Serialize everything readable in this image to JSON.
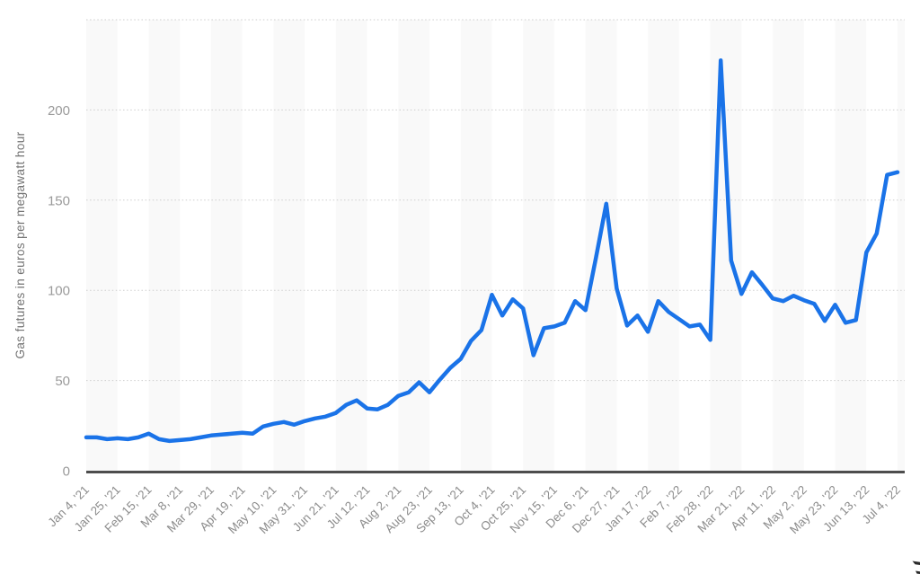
{
  "chart_data": {
    "type": "line",
    "title": "",
    "ylabel": "Gas futures in euros per megawatt hour",
    "xlabel": "",
    "legend": "none",
    "grid": "horizontal-dotted",
    "ylim": [
      0,
      250
    ],
    "yticks": [
      0,
      50,
      100,
      150,
      200
    ],
    "x_tick_labels": [
      "Jan 4, '21",
      "Jan 25, '21",
      "Feb 15, '21",
      "Mar 8, '21",
      "Mar 29, '21",
      "Apr 19, '21",
      "May 10, '21",
      "May 31, '21",
      "Jun 21, '21",
      "Jul 12, '21",
      "Aug 2, '21",
      "Aug 23, '21",
      "Sep 13, '21",
      "Oct 4, '21",
      "Oct 25, '21",
      "Nov 15, '21",
      "Dec 6, '21",
      "Dec 27, '21",
      "Jan 17, '22",
      "Feb 7, '22",
      "Feb 28, '22",
      "Mar 21, '22",
      "Apr 11, '22",
      "May 2, '22",
      "May 23, '22",
      "Jun 13, '22",
      "Jul 4, '22"
    ],
    "x": [
      "Jan 4, '21",
      "Jan 11, '21",
      "Jan 18, '21",
      "Jan 25, '21",
      "Feb 1, '21",
      "Feb 8, '21",
      "Feb 15, '21",
      "Feb 22, '21",
      "Mar 1, '21",
      "Mar 8, '21",
      "Mar 15, '21",
      "Mar 22, '21",
      "Mar 29, '21",
      "Apr 5, '21",
      "Apr 12, '21",
      "Apr 19, '21",
      "Apr 26, '21",
      "May 3, '21",
      "May 10, '21",
      "May 17, '21",
      "May 24, '21",
      "May 31, '21",
      "Jun 7, '21",
      "Jun 14, '21",
      "Jun 21, '21",
      "Jun 28, '21",
      "Jul 5, '21",
      "Jul 12, '21",
      "Jul 19, '21",
      "Jul 26, '21",
      "Aug 2, '21",
      "Aug 9, '21",
      "Aug 16, '21",
      "Aug 23, '21",
      "Aug 30, '21",
      "Sep 6, '21",
      "Sep 13, '21",
      "Sep 20, '21",
      "Sep 27, '21",
      "Oct 4, '21",
      "Oct 11, '21",
      "Oct 18, '21",
      "Oct 25, '21",
      "Nov 1, '21",
      "Nov 8, '21",
      "Nov 15, '21",
      "Nov 22, '21",
      "Nov 29, '21",
      "Dec 6, '21",
      "Dec 13, '21",
      "Dec 20, '21",
      "Dec 27, '21",
      "Jan 3, '22",
      "Jan 10, '22",
      "Jan 17, '22",
      "Jan 24, '22",
      "Jan 31, '22",
      "Feb 7, '22",
      "Feb 14, '22",
      "Feb 21, '22",
      "Feb 28, '22",
      "Mar 7, '22",
      "Mar 14, '22",
      "Mar 21, '22",
      "Mar 28, '22",
      "Apr 4, '22",
      "Apr 11, '22",
      "Apr 18, '22",
      "Apr 25, '22",
      "May 2, '22",
      "May 9, '22",
      "May 16, '22",
      "May 23, '22",
      "May 30, '22",
      "Jun 6, '22",
      "Jun 13, '22",
      "Jun 20, '22",
      "Jun 27, '22",
      "Jul 4, '22"
    ],
    "values": [
      18.5,
      18.5,
      17.5,
      18,
      17.5,
      18.5,
      20.5,
      17.5,
      16.5,
      17,
      17.5,
      18.5,
      19.5,
      20,
      20.5,
      21,
      20.5,
      24.5,
      26,
      27,
      25.5,
      27.5,
      29,
      30,
      32,
      36.5,
      39,
      34.5,
      34,
      36.5,
      41.5,
      43.5,
      49,
      43.5,
      50.5,
      57,
      62,
      72,
      78,
      97.5,
      86,
      95,
      90,
      64,
      79,
      80,
      82,
      94,
      89,
      118,
      148,
      101,
      80.5,
      86,
      77,
      94,
      88,
      84,
      80,
      81,
      72.5,
      227.5,
      116.5,
      98,
      110,
      103,
      95.5,
      94,
      97,
      94.5,
      92.5,
      83,
      92,
      82,
      83.5,
      121,
      131.5,
      164,
      165.5
    ],
    "line_color": "#1a73e8",
    "axis_color": "#4d4d4d",
    "gridline_color": "#cdcdcd",
    "stripe_color": "#f9f9f9",
    "xtick_label_color": "#8c8c8c",
    "ytick_label_color": "#9a9a9a",
    "ytitle_color": "#737373"
  }
}
